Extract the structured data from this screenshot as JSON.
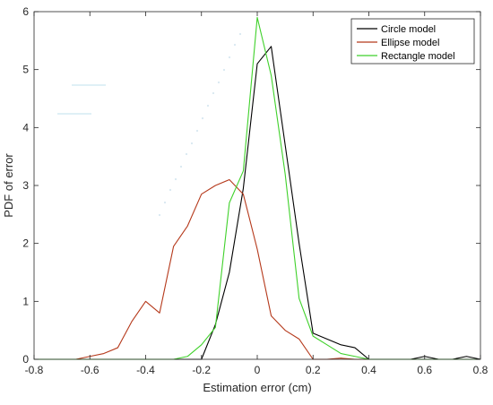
{
  "chart_data": {
    "type": "line",
    "xlabel": "Estimation error (cm)",
    "ylabel": "PDF of error",
    "xlim": [
      -0.8,
      0.8
    ],
    "ylim": [
      0,
      6
    ],
    "x_ticks": [
      -0.8,
      -0.6,
      -0.4,
      -0.2,
      0,
      0.2,
      0.4,
      0.6,
      0.8
    ],
    "y_ticks": [
      0,
      1,
      2,
      3,
      4,
      5,
      6
    ],
    "x_tick_labels": [
      "-0.8",
      "-0.6",
      "-0.4",
      "-0.2",
      "0",
      "0.2",
      "0.4",
      "0.6",
      "0.8"
    ],
    "y_tick_labels": [
      "0",
      "1",
      "2",
      "3",
      "4",
      "5",
      "6"
    ],
    "grid": false,
    "legend_position": "top-right",
    "series": [
      {
        "name": "Circle model",
        "color": "#000000",
        "points": [
          [
            -0.8,
            0
          ],
          [
            -0.2,
            0
          ],
          [
            -0.15,
            0.6
          ],
          [
            -0.1,
            1.5
          ],
          [
            -0.05,
            2.95
          ],
          [
            0,
            5.1
          ],
          [
            0.05,
            5.4
          ],
          [
            0.1,
            3.7
          ],
          [
            0.15,
            2.0
          ],
          [
            0.2,
            0.45
          ],
          [
            0.25,
            0.35
          ],
          [
            0.3,
            0.25
          ],
          [
            0.35,
            0.2
          ],
          [
            0.4,
            0
          ],
          [
            0.55,
            0
          ],
          [
            0.6,
            0.05
          ],
          [
            0.65,
            0
          ],
          [
            0.7,
            0
          ],
          [
            0.75,
            0.05
          ],
          [
            0.8,
            0
          ]
        ]
      },
      {
        "name": "Ellipse model",
        "color": "#b5391b",
        "points": [
          [
            -0.8,
            0
          ],
          [
            -0.65,
            0
          ],
          [
            -0.6,
            0.05
          ],
          [
            -0.55,
            0.1
          ],
          [
            -0.5,
            0.2
          ],
          [
            -0.45,
            0.65
          ],
          [
            -0.4,
            1.0
          ],
          [
            -0.35,
            0.8
          ],
          [
            -0.3,
            1.95
          ],
          [
            -0.25,
            2.3
          ],
          [
            -0.2,
            2.85
          ],
          [
            -0.15,
            3.0
          ],
          [
            -0.1,
            3.1
          ],
          [
            -0.05,
            2.85
          ],
          [
            0,
            1.9
          ],
          [
            0.05,
            0.75
          ],
          [
            0.1,
            0.5
          ],
          [
            0.15,
            0.35
          ],
          [
            0.2,
            0
          ],
          [
            0.25,
            0
          ],
          [
            0.3,
            0.02
          ],
          [
            0.35,
            0
          ],
          [
            0.8,
            0
          ]
        ]
      },
      {
        "name": "Rectangle model",
        "color": "#3fd12a",
        "points": [
          [
            -0.8,
            0
          ],
          [
            -0.3,
            0
          ],
          [
            -0.25,
            0.05
          ],
          [
            -0.2,
            0.25
          ],
          [
            -0.15,
            0.55
          ],
          [
            -0.1,
            2.7
          ],
          [
            -0.05,
            3.25
          ],
          [
            0,
            5.9
          ],
          [
            0.05,
            4.9
          ],
          [
            0.1,
            3.2
          ],
          [
            0.15,
            1.05
          ],
          [
            0.2,
            0.4
          ],
          [
            0.25,
            0.25
          ],
          [
            0.3,
            0.1
          ],
          [
            0.35,
            0.05
          ],
          [
            0.4,
            0
          ],
          [
            0.8,
            0
          ]
        ]
      }
    ]
  }
}
